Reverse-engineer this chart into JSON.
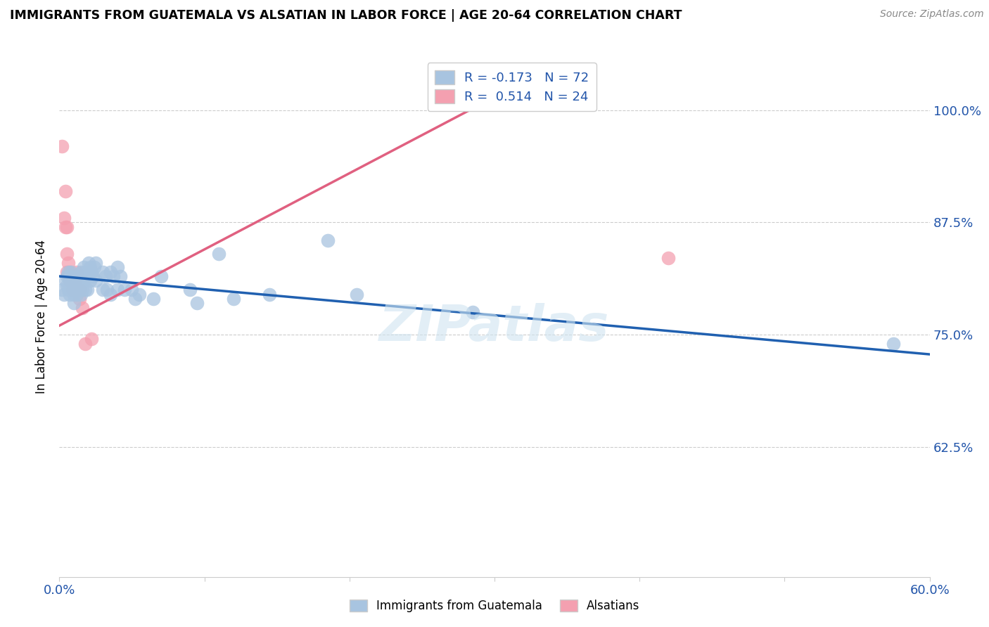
{
  "title": "IMMIGRANTS FROM GUATEMALA VS ALSATIAN IN LABOR FORCE | AGE 20-64 CORRELATION CHART",
  "source": "Source: ZipAtlas.com",
  "ylabel": "In Labor Force | Age 20-64",
  "blue_label": "Immigrants from Guatemala",
  "pink_label": "Alsatians",
  "watermark": "ZIPatlas",
  "blue_R": -0.173,
  "blue_N": 72,
  "pink_R": 0.514,
  "pink_N": 24,
  "blue_color": "#a8c4e0",
  "pink_color": "#f4a0b0",
  "blue_line_color": "#2060b0",
  "pink_line_color": "#e06080",
  "legend_blue_fill": "#a8c4e0",
  "legend_pink_fill": "#f4a0b0",
  "xmin": 0.0,
  "xmax": 0.6,
  "ymin": 0.48,
  "ymax": 1.06,
  "yticks": [
    0.625,
    0.75,
    0.875,
    1.0
  ],
  "ytick_labels": [
    "62.5%",
    "75.0%",
    "87.5%",
    "100.0%"
  ],
  "blue_line_x": [
    0.0,
    0.6
  ],
  "blue_line_y": [
    0.815,
    0.728
  ],
  "pink_line_x": [
    0.0,
    0.285
  ],
  "pink_line_y": [
    0.76,
    1.002
  ],
  "blue_scatter_x": [
    0.002,
    0.003,
    0.004,
    0.005,
    0.005,
    0.006,
    0.006,
    0.007,
    0.007,
    0.007,
    0.008,
    0.008,
    0.008,
    0.009,
    0.009,
    0.01,
    0.01,
    0.01,
    0.01,
    0.011,
    0.011,
    0.012,
    0.012,
    0.013,
    0.013,
    0.014,
    0.014,
    0.015,
    0.015,
    0.015,
    0.016,
    0.016,
    0.017,
    0.017,
    0.018,
    0.018,
    0.019,
    0.019,
    0.02,
    0.02,
    0.021,
    0.021,
    0.022,
    0.023,
    0.024,
    0.025,
    0.025,
    0.03,
    0.03,
    0.032,
    0.033,
    0.035,
    0.035,
    0.037,
    0.04,
    0.04,
    0.042,
    0.045,
    0.05,
    0.052,
    0.055,
    0.065,
    0.07,
    0.09,
    0.095,
    0.11,
    0.12,
    0.145,
    0.185,
    0.205,
    0.285,
    0.575
  ],
  "blue_scatter_y": [
    0.8,
    0.795,
    0.81,
    0.815,
    0.805,
    0.82,
    0.8,
    0.815,
    0.81,
    0.795,
    0.82,
    0.81,
    0.8,
    0.81,
    0.8,
    0.81,
    0.8,
    0.795,
    0.785,
    0.81,
    0.8,
    0.815,
    0.795,
    0.81,
    0.8,
    0.815,
    0.8,
    0.82,
    0.81,
    0.795,
    0.815,
    0.8,
    0.825,
    0.81,
    0.82,
    0.8,
    0.815,
    0.8,
    0.83,
    0.815,
    0.825,
    0.81,
    0.82,
    0.815,
    0.825,
    0.83,
    0.81,
    0.82,
    0.8,
    0.815,
    0.8,
    0.82,
    0.795,
    0.815,
    0.825,
    0.8,
    0.815,
    0.8,
    0.8,
    0.79,
    0.795,
    0.79,
    0.815,
    0.8,
    0.785,
    0.84,
    0.79,
    0.795,
    0.855,
    0.795,
    0.775,
    0.74
  ],
  "pink_scatter_x": [
    0.002,
    0.003,
    0.004,
    0.004,
    0.005,
    0.005,
    0.005,
    0.006,
    0.006,
    0.007,
    0.007,
    0.008,
    0.009,
    0.009,
    0.01,
    0.01,
    0.011,
    0.012,
    0.014,
    0.014,
    0.016,
    0.018,
    0.022,
    0.42
  ],
  "pink_scatter_y": [
    0.96,
    0.88,
    0.91,
    0.87,
    0.87,
    0.84,
    0.82,
    0.83,
    0.815,
    0.82,
    0.81,
    0.815,
    0.81,
    0.8,
    0.81,
    0.8,
    0.81,
    0.82,
    0.8,
    0.79,
    0.78,
    0.74,
    0.745,
    0.835
  ]
}
